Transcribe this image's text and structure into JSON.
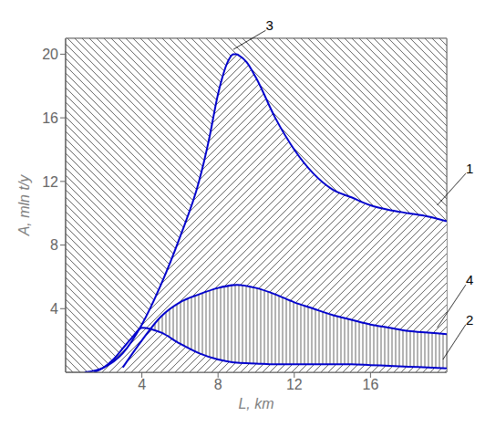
{
  "chart_data": {
    "type": "line",
    "title": "",
    "xlabel": "L, km",
    "ylabel": "A, mln t/y",
    "xlim": [
      0,
      20
    ],
    "ylim": [
      0,
      21
    ],
    "xticks": [
      4,
      8,
      12,
      16
    ],
    "yticks": [
      4,
      8,
      12,
      16,
      20
    ],
    "grid": true,
    "color": "#0000cc",
    "series": [
      {
        "x": [
          1.0,
          2.0,
          3.0,
          4.0,
          5.0,
          6.0,
          7.0,
          7.5,
          8.0,
          8.5,
          8.8,
          9.0
        ],
        "values": [
          0.0,
          0.3,
          1.2,
          3.0,
          5.5,
          8.5,
          12.0,
          14.5,
          17.5,
          19.5,
          20.0,
          20.0
        ]
      },
      {
        "x": [
          9.0,
          9.5,
          10.0,
          11.0,
          12.0,
          13.0,
          14.0,
          15.0,
          16.0,
          17.0,
          18.0,
          19.0,
          20.0
        ],
        "values": [
          20.0,
          19.5,
          18.5,
          16.0,
          14.0,
          12.5,
          11.5,
          11.0,
          10.5,
          10.2,
          10.0,
          9.8,
          9.5
        ]
      },
      {
        "x": [
          3.0,
          4.0,
          5.0,
          6.0,
          7.0,
          8.0,
          9.0,
          10.0,
          11.0,
          12.0,
          13.0,
          14.0,
          15.0,
          16.0,
          17.0,
          18.0,
          19.0,
          20.0
        ],
        "values": [
          0.3,
          2.0,
          3.5,
          4.4,
          4.9,
          5.3,
          5.5,
          5.3,
          4.9,
          4.4,
          4.0,
          3.6,
          3.3,
          3.0,
          2.8,
          2.6,
          2.5,
          2.4
        ]
      },
      {
        "x": [
          1.5,
          2.0,
          2.5,
          3.0,
          3.5,
          4.0,
          5.0,
          6.0,
          7.0,
          8.0,
          9.0,
          10.0,
          11.0,
          12.0,
          13.0,
          14.0,
          15.0,
          16.0,
          17.0,
          18.0,
          19.0,
          20.0
        ],
        "values": [
          0.0,
          0.3,
          0.8,
          1.5,
          2.2,
          2.8,
          2.5,
          1.8,
          1.2,
          0.8,
          0.6,
          0.55,
          0.5,
          0.5,
          0.5,
          0.5,
          0.5,
          0.45,
          0.4,
          0.35,
          0.3,
          0.25
        ]
      }
    ],
    "annotations": [
      {
        "text": "3",
        "x": 8.8,
        "y": 20.3,
        "text_x": 10.5,
        "text_y": 21.5
      },
      {
        "text": "1",
        "x": 19.5,
        "y": 10.5,
        "text_x": 21.0,
        "text_y": 12.5
      },
      {
        "text": "4",
        "x": 19.5,
        "y": 2.8,
        "text_x": 21.0,
        "text_y": 5.5
      },
      {
        "text": "2",
        "x": 19.8,
        "y": 0.8,
        "text_x": 21.0,
        "text_y": 3.0
      }
    ]
  }
}
